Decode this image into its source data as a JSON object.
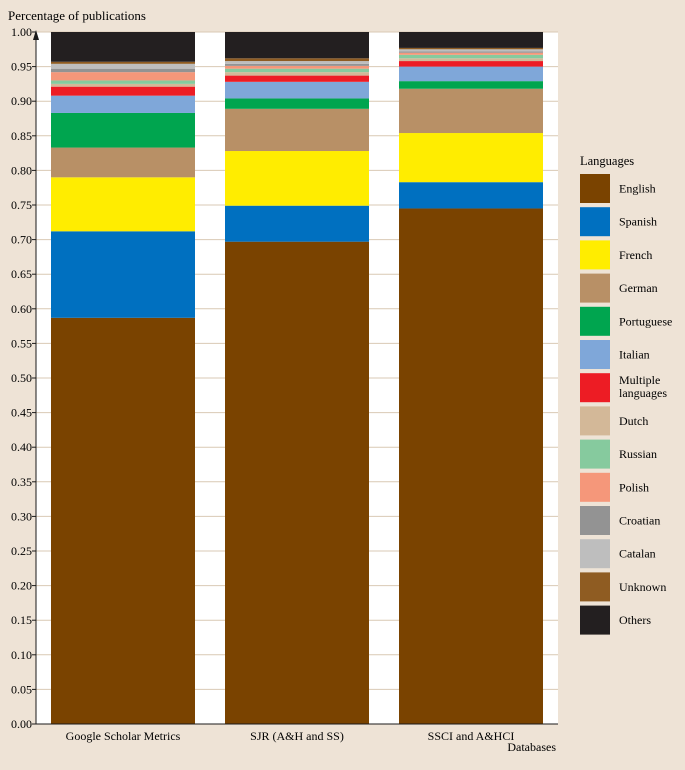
{
  "chart_data": {
    "type": "bar",
    "stacked": true,
    "ylabel": "Percentage of publications",
    "xlabel": "Databases",
    "ylim": [
      0,
      1
    ],
    "yticks": [
      "0.00",
      "0.05",
      "0.10",
      "0.15",
      "0.20",
      "0.25",
      "0.30",
      "0.35",
      "0.40",
      "0.45",
      "0.50",
      "0.55",
      "0.60",
      "0.65",
      "0.70",
      "0.75",
      "0.80",
      "0.85",
      "0.90",
      "0.95",
      "1.00"
    ],
    "categories": [
      "Google Scholar Metrics",
      "SJR (A&H and SS)",
      "SSCI and A&HCI"
    ],
    "legend_title": "Languages",
    "legend_position": "right",
    "grid": "horizontal",
    "series": [
      {
        "name": "English",
        "color": "#7a4300",
        "values": [
          0.587,
          0.697,
          0.745
        ]
      },
      {
        "name": "Spanish",
        "color": "#0070c0",
        "values": [
          0.125,
          0.052,
          0.038
        ]
      },
      {
        "name": "French",
        "color": "#ffed00",
        "values": [
          0.078,
          0.079,
          0.071
        ]
      },
      {
        "name": "German",
        "color": "#b89066",
        "values": [
          0.043,
          0.061,
          0.064
        ]
      },
      {
        "name": "Portuguese",
        "color": "#00a54f",
        "values": [
          0.05,
          0.015,
          0.011
        ]
      },
      {
        "name": "Italian",
        "color": "#7fa7d9",
        "values": [
          0.025,
          0.024,
          0.021
        ]
      },
      {
        "name": "Multiple languages",
        "color": "#ed1c24",
        "values": [
          0.013,
          0.009,
          0.008
        ]
      },
      {
        "name": "Dutch",
        "color": "#d3b898",
        "values": [
          0.004,
          0.005,
          0.004
        ]
      },
      {
        "name": "Russian",
        "color": "#86ca9e",
        "values": [
          0.005,
          0.005,
          0.005
        ]
      },
      {
        "name": "Polish",
        "color": "#f5977a",
        "values": [
          0.012,
          0.004,
          0.003
        ]
      },
      {
        "name": "Croatian",
        "color": "#939393",
        "values": [
          0.005,
          0.003,
          0.002
        ]
      },
      {
        "name": "Catalan",
        "color": "#bebebe",
        "values": [
          0.007,
          0.004,
          0.003
        ]
      },
      {
        "name": "Unknown",
        "color": "#8f5c22",
        "values": [
          0.003,
          0.004,
          0.002
        ]
      },
      {
        "name": "Others",
        "color": "#231f20",
        "values": [
          0.043,
          0.038,
          0.023
        ]
      }
    ]
  }
}
